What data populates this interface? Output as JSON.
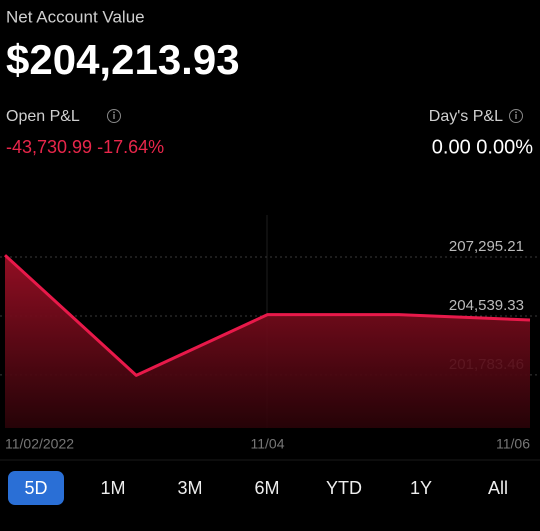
{
  "header": {
    "label": "Net Account Value",
    "value": "$204,213.93"
  },
  "open_pl": {
    "label": "Open P&L",
    "value": "-43,730.99 -17.64%"
  },
  "day_pl": {
    "label": "Day's P&L",
    "value": "0.00 0.00%"
  },
  "chart_data": {
    "type": "line",
    "categories": [
      "11/02/2022",
      null,
      "11/04",
      null,
      "11/06"
    ],
    "values": [
      207380,
      201760,
      204600,
      204600,
      204350
    ],
    "color": "#e8194a",
    "ylim": [
      199300,
      209260
    ],
    "yticks": [
      {
        "value": 201783.46,
        "label": "201,783.46"
      },
      {
        "value": 204539.33,
        "label": "204,539.33"
      },
      {
        "value": 207295.21,
        "label": "207,295.21"
      }
    ],
    "grid": true
  },
  "periods": {
    "items": [
      "5D",
      "1M",
      "3M",
      "6M",
      "YTD",
      "1Y",
      "All"
    ],
    "active": "5D"
  }
}
